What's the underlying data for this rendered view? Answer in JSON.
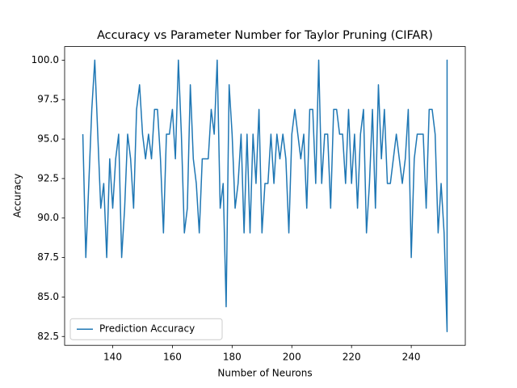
{
  "chart_data": {
    "type": "line",
    "title": "Accuracy vs Parameter Number for Taylor Pruning (CIFAR)",
    "xlabel": "Number of Neurons",
    "ylabel": "Accuracy",
    "x": [
      130,
      131,
      132,
      133,
      134,
      135,
      136,
      137,
      138,
      139,
      140,
      141,
      142,
      143,
      144,
      145,
      146,
      147,
      148,
      149,
      150,
      151,
      152,
      153,
      154,
      155,
      156,
      157,
      158,
      159,
      160,
      161,
      162,
      163,
      164,
      165,
      166,
      167,
      168,
      169,
      170,
      171,
      172,
      173,
      174,
      175,
      176,
      177,
      178,
      179,
      180,
      181,
      182,
      183,
      184,
      185,
      186,
      187,
      188,
      189,
      190,
      191,
      192,
      193,
      194,
      195,
      196,
      197,
      198,
      199,
      200,
      201,
      202,
      203,
      204,
      205,
      206,
      207,
      208,
      209,
      210,
      211,
      212,
      213,
      214,
      215,
      216,
      217,
      218,
      219,
      220,
      221,
      222,
      223,
      224,
      225,
      226,
      227,
      228,
      229,
      230,
      231,
      232,
      233,
      234,
      235,
      236,
      237,
      238,
      239,
      240,
      241,
      242,
      243,
      244,
      245,
      246,
      247,
      248,
      249,
      250,
      251,
      252,
      252,
      252,
      252,
      252
    ],
    "series": [
      {
        "name": "Prediction Accuracy",
        "color": "#1f77b4",
        "values": [
          95.31,
          87.5,
          92.19,
          96.88,
          100,
          95.31,
          90.62,
          92.19,
          87.5,
          93.75,
          90.62,
          93.75,
          95.31,
          87.5,
          90.62,
          95.31,
          93.75,
          90.62,
          96.88,
          98.44,
          95.31,
          93.75,
          95.31,
          93.75,
          96.88,
          96.88,
          93.75,
          89.06,
          95.31,
          95.31,
          96.88,
          93.75,
          100,
          95.31,
          89.06,
          90.62,
          98.44,
          93.75,
          92.19,
          89.06,
          93.75,
          93.75,
          93.75,
          96.88,
          95.31,
          100,
          90.62,
          92.19,
          84.38,
          98.44,
          95.31,
          90.62,
          92.19,
          95.31,
          89.06,
          95.31,
          89.06,
          95.31,
          92.19,
          96.88,
          89.06,
          92.19,
          92.19,
          95.31,
          92.19,
          95.31,
          93.75,
          95.31,
          93.75,
          89.06,
          95.31,
          96.88,
          95.31,
          93.75,
          95.31,
          90.62,
          96.88,
          96.88,
          92.19,
          100,
          92.19,
          95.31,
          95.31,
          90.62,
          96.88,
          96.88,
          95.31,
          95.31,
          92.19,
          96.88,
          92.19,
          95.31,
          90.62,
          95.31,
          96.88,
          89.06,
          92.19,
          96.88,
          90.62,
          98.44,
          93.75,
          96.88,
          92.19,
          92.19,
          93.75,
          95.31,
          93.75,
          92.19,
          93.75,
          96.88,
          87.5,
          93.75,
          95.31,
          95.31,
          95.31,
          90.62,
          96.88,
          96.88,
          95.31,
          89.06,
          92.19,
          89.06,
          82.81,
          100,
          82.81,
          100,
          90.62
        ]
      }
    ],
    "xlim": [
      123.9,
      258.1
    ],
    "xticks": [
      140,
      160,
      180,
      200,
      220,
      240
    ],
    "ylim": [
      81.94,
      100.86
    ],
    "yticks": [
      82.5,
      {
        "value": 85,
        "label": "85.0"
      },
      87.5,
      {
        "value": 90,
        "label": "90.0"
      },
      92.5,
      {
        "value": 95,
        "label": "95.0"
      },
      97.5,
      {
        "value": 100,
        "label": "100.0"
      }
    ],
    "legend": "lower left"
  }
}
